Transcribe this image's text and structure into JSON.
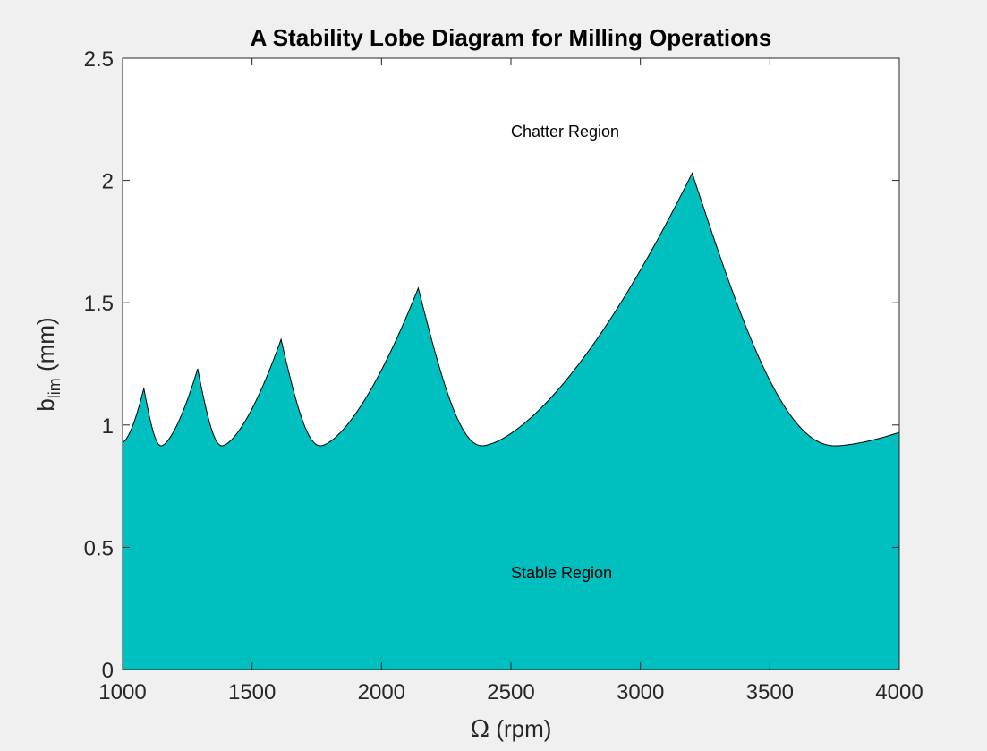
{
  "chart_data": {
    "type": "area",
    "title": "A Stability Lobe Diagram for Milling Operations",
    "xlabel": {
      "prefix": "Ω",
      "suffix": "(rpm)"
    },
    "ylabel": {
      "base": "b",
      "subscript": "lim",
      "suffix": "(mm)"
    },
    "xlim": [
      1000,
      4000
    ],
    "ylim": [
      0,
      2.5
    ],
    "xticks": [
      1000,
      1500,
      2000,
      2500,
      3000,
      3500,
      4000
    ],
    "xtick_labels": [
      "1000",
      "1500",
      "2000",
      "2500",
      "3000",
      "3500",
      "4000"
    ],
    "yticks": [
      0,
      0.5,
      1,
      1.5,
      2,
      2.5
    ],
    "ytick_labels": [
      "0",
      "0.5",
      "1",
      "1.5",
      "2",
      "2.5"
    ],
    "grid": false,
    "fill_color": "#00bfbf",
    "edge_color": "#000000",
    "annotations": [
      {
        "text": "Chatter Region",
        "x": 2500,
        "y": 2.2
      },
      {
        "text": "Stable Region",
        "x": 2500,
        "y": 0.4
      }
    ],
    "lobes": [
      {
        "start": 1000,
        "start_b": 0.93,
        "valley_x": null,
        "peak_x": 1082,
        "peak_b": 1.15
      },
      {
        "start": 1082,
        "start_b": 1.15,
        "valley_x": 1150,
        "peak_x": 1290,
        "peak_b": 1.23
      },
      {
        "start": 1290,
        "start_b": 1.23,
        "valley_x": 1385,
        "peak_x": 1612,
        "peak_b": 1.35
      },
      {
        "start": 1612,
        "start_b": 1.35,
        "valley_x": 1765,
        "peak_x": 2142,
        "peak_b": 1.56
      },
      {
        "start": 2142,
        "start_b": 1.56,
        "valley_x": 2390,
        "peak_x": 3200,
        "peak_b": 2.03
      },
      {
        "start": 3200,
        "start_b": 2.03,
        "valley_x": 3755,
        "peak_x": 4000,
        "peak_b": 0.97
      }
    ],
    "valley_b": 0.915
  }
}
